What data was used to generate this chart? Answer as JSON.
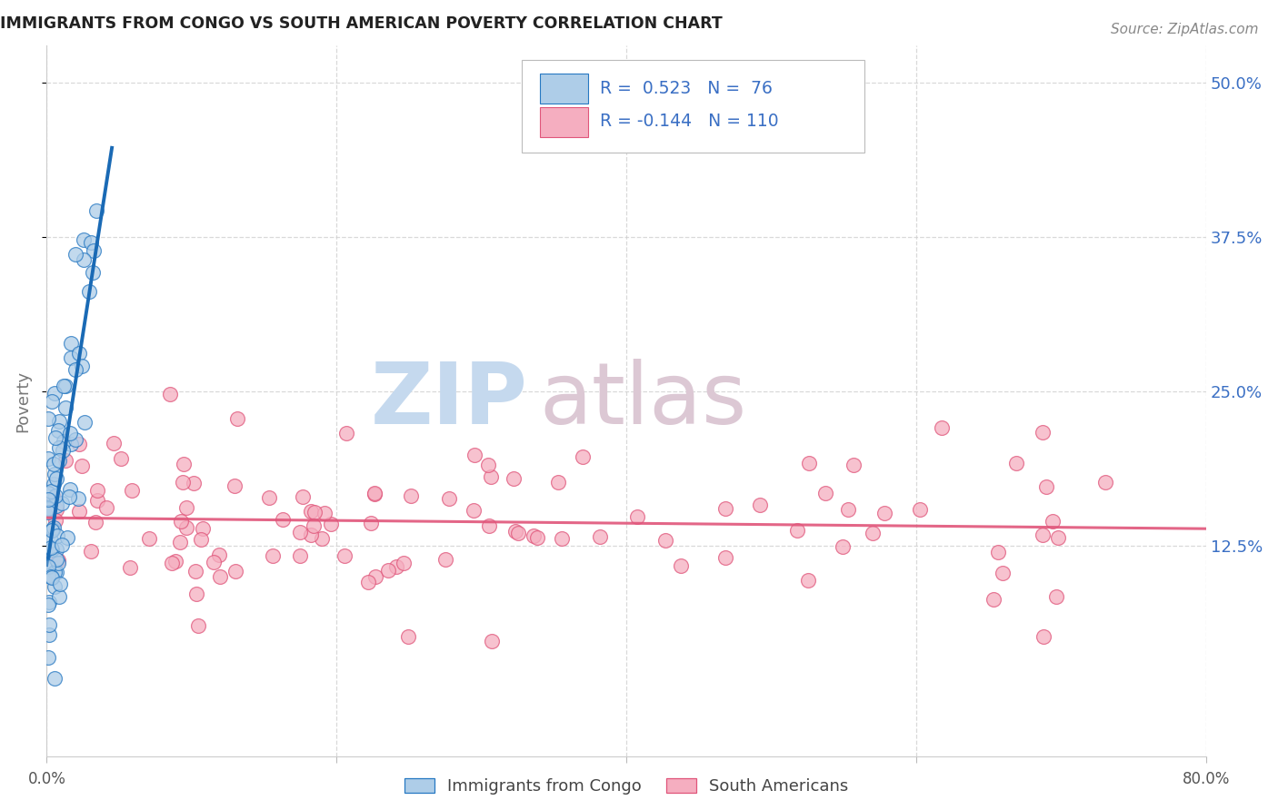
{
  "title": "IMMIGRANTS FROM CONGO VS SOUTH AMERICAN POVERTY CORRELATION CHART",
  "source": "Source: ZipAtlas.com",
  "ylabel": "Poverty",
  "ytick_values": [
    0.125,
    0.25,
    0.375,
    0.5
  ],
  "ytick_labels": [
    "12.5%",
    "25.0%",
    "37.5%",
    "50.0%"
  ],
  "xlim": [
    0.0,
    0.8
  ],
  "ylim": [
    -0.045,
    0.53
  ],
  "legend_label1": "Immigrants from Congo",
  "legend_label2": "South Americans",
  "color_congo_fill": "#aecde8",
  "color_congo_edge": "#2678c2",
  "color_south_fill": "#f5aec0",
  "color_south_edge": "#e0557a",
  "color_congo_regline": "#1a6ab5",
  "color_south_regline": "#e0557a",
  "r_congo": 0.523,
  "n_congo": 76,
  "r_south": -0.144,
  "n_south": 110,
  "watermark_zip_color": "#c5d9ee",
  "watermark_atlas_color": "#dcc8d4",
  "grid_color": "#d0d0d0",
  "tick_label_color": "#3a6fc4",
  "ylabel_color": "#777777",
  "title_color": "#222222",
  "source_color": "#888888"
}
